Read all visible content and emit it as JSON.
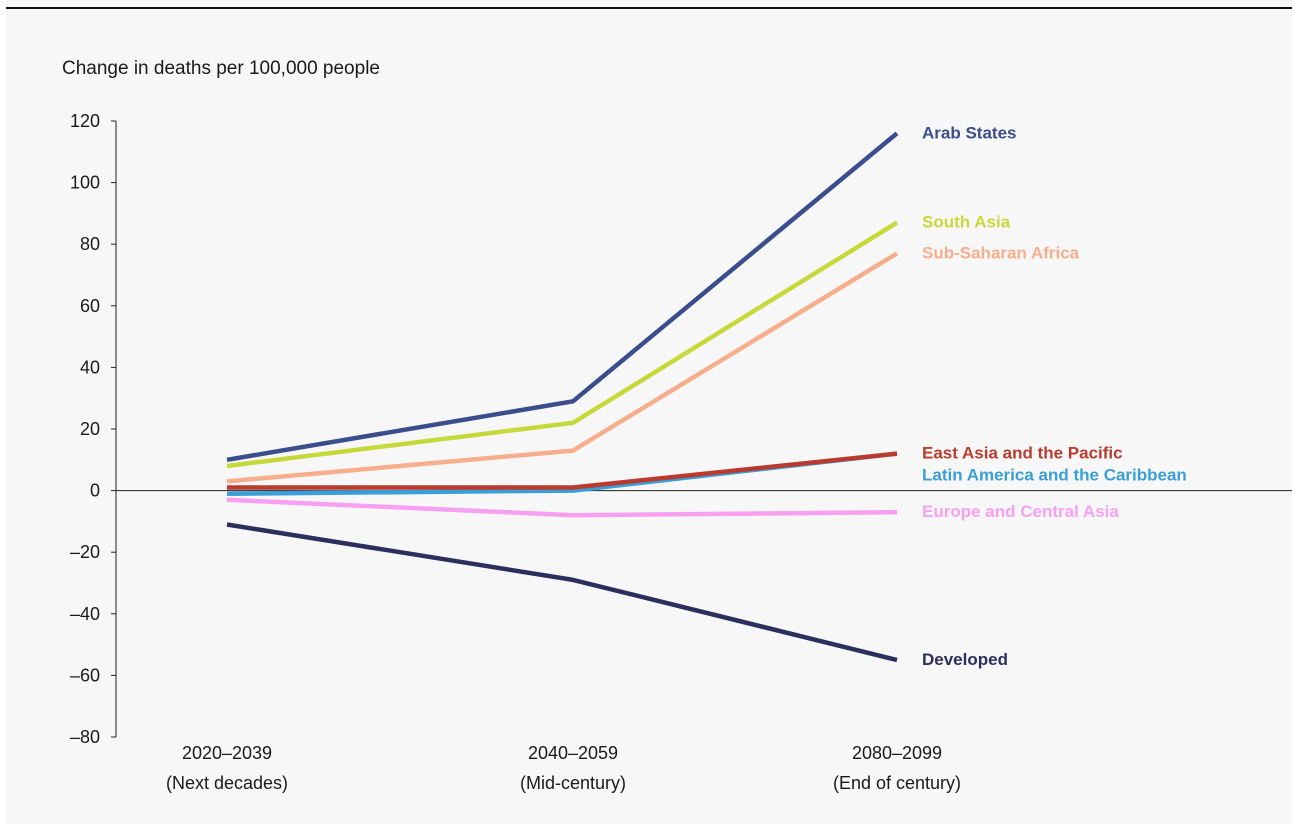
{
  "chart_data": {
    "type": "line",
    "ylabel": "Change in deaths per 100,000 people",
    "ylim": [
      -80,
      120
    ],
    "yticks": [
      {
        "v": 120,
        "label": "120"
      },
      {
        "v": 100,
        "label": "100"
      },
      {
        "v": 80,
        "label": "80"
      },
      {
        "v": 60,
        "label": "60"
      },
      {
        "v": 40,
        "label": "40"
      },
      {
        "v": 20,
        "label": "20"
      },
      {
        "v": 0,
        "label": "0"
      },
      {
        "v": -20,
        "label": "–20"
      },
      {
        "v": -40,
        "label": "–40"
      },
      {
        "v": -60,
        "label": "–60"
      },
      {
        "v": -80,
        "label": "–80"
      }
    ],
    "categories": [
      {
        "line1": "2020–2039",
        "line2": "(Next decades)"
      },
      {
        "line1": "2040–2059",
        "line2": "(Mid-century)"
      },
      {
        "line1": "2080–2099",
        "line2": "(End of century)"
      }
    ],
    "grid": false,
    "series": [
      {
        "name": "Europe and Central Asia",
        "color": "#f7a0f2",
        "values": [
          -3,
          -8,
          -7
        ]
      },
      {
        "name": "Developed",
        "color": "#2a2f5e",
        "values": [
          -11,
          -29,
          -55
        ]
      },
      {
        "name": "Sub-Saharan Africa",
        "color": "#f6ae8c",
        "values": [
          3,
          13,
          77
        ]
      },
      {
        "name": "South Asia",
        "color": "#c6d93a",
        "values": [
          8,
          22,
          87
        ]
      },
      {
        "name": "Arab States",
        "color": "#3b4d8c",
        "values": [
          10,
          29,
          116
        ]
      },
      {
        "name": "Latin America and the Caribbean",
        "color": "#3a9fd8",
        "values": [
          -1,
          0,
          12
        ]
      },
      {
        "name": "East Asia and the Pacific",
        "color": "#b93b2f",
        "values": [
          1,
          1,
          12
        ]
      }
    ]
  }
}
